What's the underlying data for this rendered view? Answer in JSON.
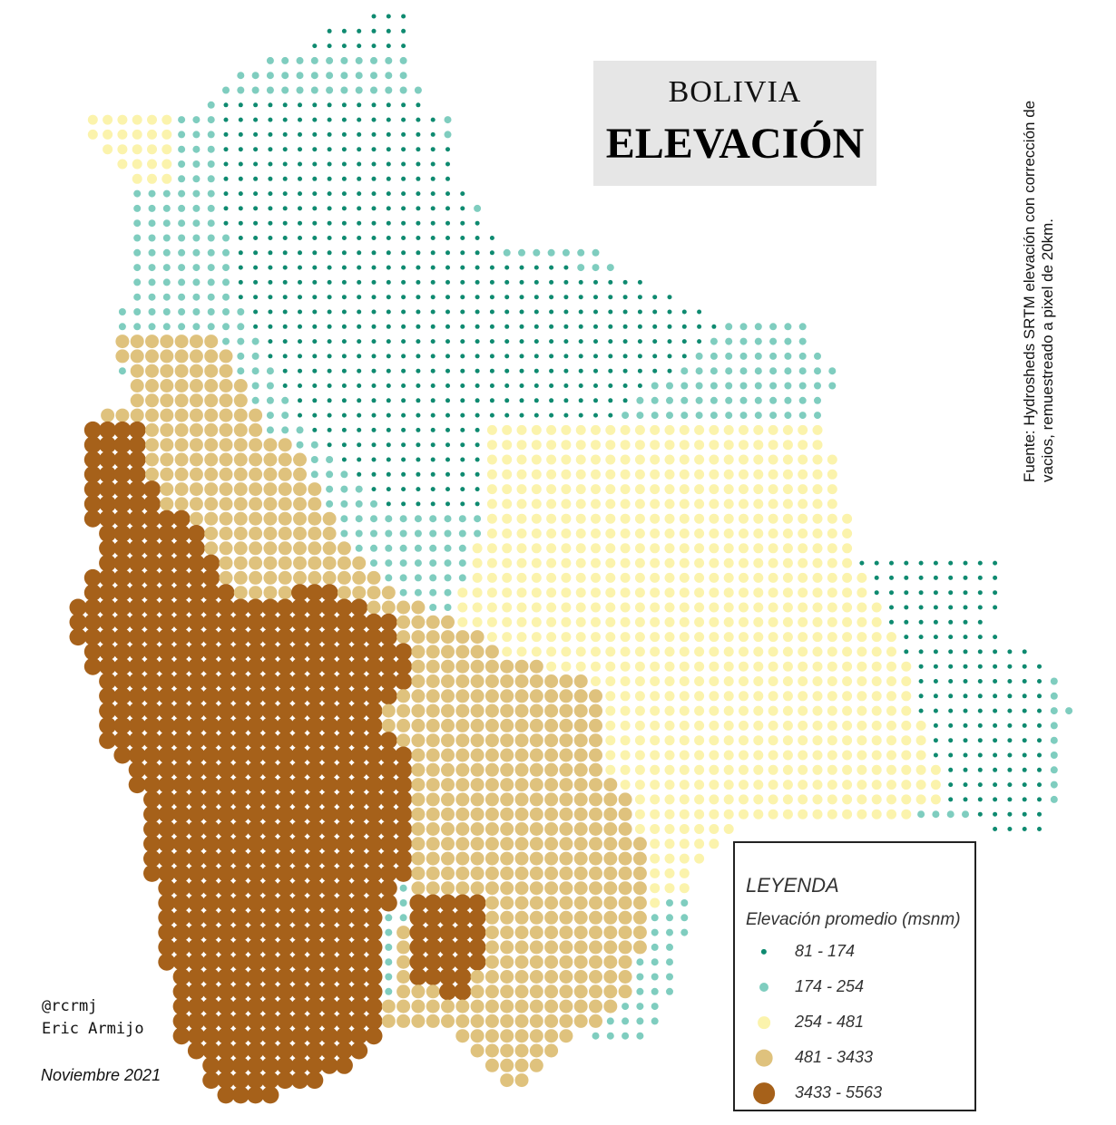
{
  "title": {
    "line1": "BOLIVIA",
    "line2": "ELEVACIÓN"
  },
  "source": "Fuente: Hydrosheds SRTM elevación con corrección de vacios, remuestreado a pixel de 20km.",
  "legend": {
    "title": "LEYENDA",
    "subtitle": "Elevación promedio (msnm)",
    "classes": [
      {
        "label": "81 - 174",
        "color": "#0e8a70",
        "size": "xs"
      },
      {
        "label": "174 - 254",
        "color": "#7fcdbf",
        "size": "s"
      },
      {
        "label": "254 - 481",
        "color": "#fbf3ac",
        "size": "m"
      },
      {
        "label": "481 - 3433",
        "color": "#dfc27d",
        "size": "l"
      },
      {
        "label": "3433 - 5563",
        "color": "#a6611a",
        "size": "xl"
      }
    ]
  },
  "credits": {
    "handle": "@rcrmj",
    "author": "Eric Armijo",
    "date": "Noviembre 2021"
  }
}
